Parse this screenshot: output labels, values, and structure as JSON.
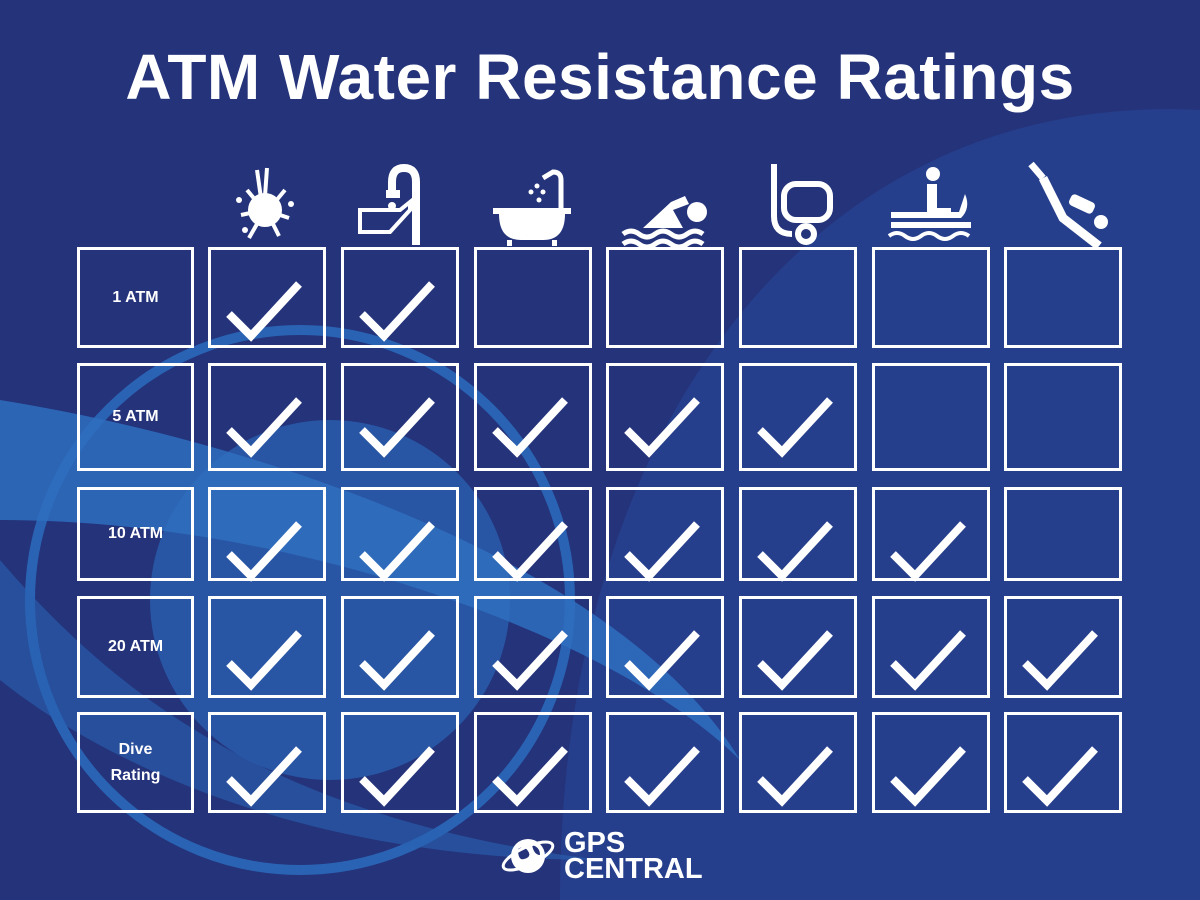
{
  "title": "ATM Water Resistance Ratings",
  "colors": {
    "background": "#24337a",
    "accent": "#2f6fc0",
    "line": "#ffffff"
  },
  "activities": [
    {
      "icon": "splash-icon"
    },
    {
      "icon": "hand-washing-icon"
    },
    {
      "icon": "bath-shower-icon"
    },
    {
      "icon": "swimming-icon"
    },
    {
      "icon": "snorkel-icon"
    },
    {
      "icon": "jet-ski-icon"
    },
    {
      "icon": "scuba-diver-icon"
    }
  ],
  "ratings": [
    {
      "label": "1 ATM",
      "checks": [
        true,
        true,
        false,
        false,
        false,
        false,
        false
      ]
    },
    {
      "label": "5 ATM",
      "checks": [
        true,
        true,
        true,
        true,
        true,
        false,
        false
      ]
    },
    {
      "label": "10 ATM",
      "checks": [
        true,
        true,
        true,
        true,
        true,
        true,
        false
      ]
    },
    {
      "label": "20 ATM",
      "checks": [
        true,
        true,
        true,
        true,
        true,
        true,
        true
      ]
    },
    {
      "label": "Dive\nRating",
      "checks": [
        true,
        true,
        true,
        true,
        true,
        true,
        true
      ]
    }
  ],
  "logo": {
    "line1": "GPS",
    "line2": "CENTRAL"
  }
}
